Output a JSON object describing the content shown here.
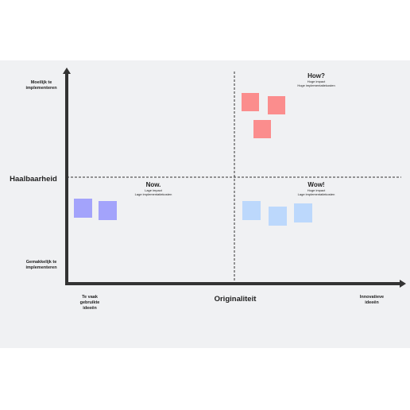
{
  "axes": {
    "y_label": "Haalbaarheid",
    "x_label": "Originaliteit",
    "y_top": [
      "Moeilijk te",
      "implementeren"
    ],
    "y_bottom": [
      "Gemakkelijk te",
      "implementeren"
    ],
    "x_left": [
      "Te vaak",
      "gebruikte",
      "ideeën"
    ],
    "x_right": [
      "Innovatieve",
      "ideeën"
    ]
  },
  "quadrants": [
    {
      "title": "How?",
      "lines": [
        "Hoge impact",
        "Hoge implementatiekosten"
      ]
    },
    {
      "title": "Now.",
      "lines": [
        "Lage impact",
        "Lage implementatiekosten"
      ]
    },
    {
      "title": "Wow!",
      "lines": [
        "Hoge impact",
        "Lage implementatiekosten"
      ]
    }
  ]
}
